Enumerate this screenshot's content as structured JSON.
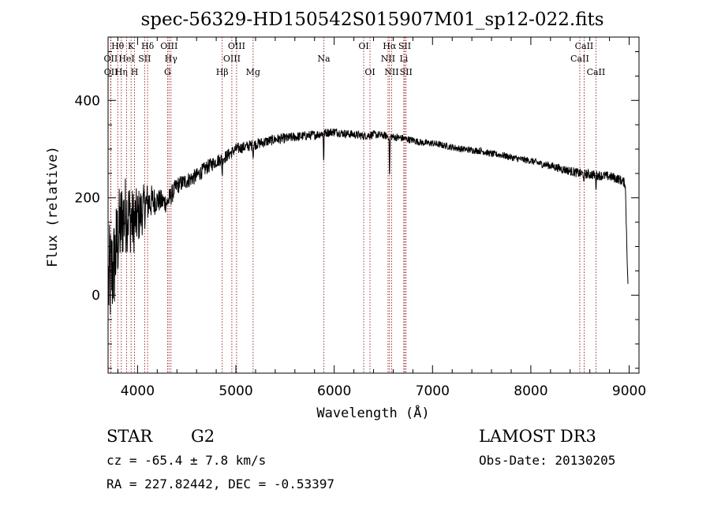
{
  "chart_data": {
    "type": "line",
    "title": "spec-56329-HD150542S015907M01_sp12-022.fits",
    "xlabel": "Wavelength (Å)",
    "ylabel": "Flux (relative)",
    "xlim": [
      3700,
      9100
    ],
    "ylim": [
      -160,
      530
    ],
    "xticks_major": [
      4000,
      5000,
      6000,
      7000,
      8000,
      9000
    ],
    "xtick_labels": [
      "4000",
      "5000",
      "6000",
      "7000",
      "8000",
      "9000"
    ],
    "yticks_major": [
      0,
      200,
      400
    ],
    "ytick_labels": [
      "0",
      "200",
      "400"
    ],
    "series": [
      {
        "name": "spectrum",
        "continuum": [
          [
            3700,
            20
          ],
          [
            3760,
            60
          ],
          [
            3800,
            120
          ],
          [
            3850,
            160
          ],
          [
            3900,
            170
          ],
          [
            3950,
            150
          ],
          [
            4000,
            160
          ],
          [
            4050,
            175
          ],
          [
            4100,
            190
          ],
          [
            4200,
            195
          ],
          [
            4300,
            190
          ],
          [
            4400,
            225
          ],
          [
            4500,
            235
          ],
          [
            4600,
            245
          ],
          [
            4700,
            262
          ],
          [
            4800,
            275
          ],
          [
            4900,
            285
          ],
          [
            5000,
            300
          ],
          [
            5100,
            305
          ],
          [
            5200,
            310
          ],
          [
            5300,
            315
          ],
          [
            5400,
            320
          ],
          [
            5500,
            322
          ],
          [
            5600,
            325
          ],
          [
            5700,
            327
          ],
          [
            5800,
            329
          ],
          [
            5900,
            333
          ],
          [
            6000,
            336
          ],
          [
            6100,
            332
          ],
          [
            6200,
            330
          ],
          [
            6300,
            327
          ],
          [
            6400,
            330
          ],
          [
            6500,
            328
          ],
          [
            6600,
            325
          ],
          [
            6700,
            322
          ],
          [
            6800,
            318
          ],
          [
            6900,
            313
          ],
          [
            7000,
            312
          ],
          [
            7100,
            308
          ],
          [
            7200,
            304
          ],
          [
            7300,
            300
          ],
          [
            7400,
            298
          ],
          [
            7500,
            296
          ],
          [
            7600,
            290
          ],
          [
            7700,
            288
          ],
          [
            7800,
            283
          ],
          [
            7900,
            279
          ],
          [
            8000,
            276
          ],
          [
            8100,
            270
          ],
          [
            8200,
            266
          ],
          [
            8300,
            260
          ],
          [
            8400,
            255
          ],
          [
            8500,
            250
          ],
          [
            8600,
            248
          ],
          [
            8700,
            246
          ],
          [
            8800,
            244
          ],
          [
            8900,
            238
          ],
          [
            8960,
            230
          ],
          [
            8990,
            0
          ]
        ],
        "noise": [
          [
            3700,
            120
          ],
          [
            3800,
            95
          ],
          [
            3900,
            80
          ],
          [
            4000,
            60
          ],
          [
            4200,
            25
          ],
          [
            4400,
            18
          ],
          [
            5000,
            12
          ],
          [
            6000,
            9
          ],
          [
            7000,
            7
          ],
          [
            8000,
            7
          ],
          [
            8500,
            10
          ],
          [
            8990,
            10
          ]
        ],
        "absorption_lines": [
          [
            4861,
            35
          ],
          [
            5175,
            25
          ],
          [
            5893,
            55
          ],
          [
            6563,
            85
          ],
          [
            8542,
            22
          ],
          [
            8662,
            25
          ]
        ]
      }
    ],
    "spectral_lines": [
      {
        "label": "OII",
        "x": 3727,
        "row": 2
      },
      {
        "label": "OII",
        "x": 3729,
        "row": 3
      },
      {
        "label": "Hθ",
        "x": 3798,
        "row": 1
      },
      {
        "label": "Hη",
        "x": 3835,
        "row": 3
      },
      {
        "label": "HeI",
        "x": 3889,
        "row": 2
      },
      {
        "label": "K",
        "x": 3934,
        "row": 1
      },
      {
        "label": "H",
        "x": 3969,
        "row": 3
      },
      {
        "label": "SII",
        "x": 4072,
        "row": 2
      },
      {
        "label": "Hδ",
        "x": 4102,
        "row": 1
      },
      {
        "label": "OIII",
        "x": 4320,
        "row": 1
      },
      {
        "label": "Hγ",
        "x": 4340,
        "row": 2
      },
      {
        "label": "G",
        "x": 4305,
        "row": 3
      },
      {
        "label": "Hβ",
        "x": 4861,
        "row": 3
      },
      {
        "label": "OIII",
        "x": 5007,
        "row": 1
      },
      {
        "label": "OIII",
        "x": 4959,
        "row": 2
      },
      {
        "label": "Mg",
        "x": 5175,
        "row": 3
      },
      {
        "label": "Na",
        "x": 5894,
        "row": 2
      },
      {
        "label": "OI",
        "x": 6300,
        "row": 1
      },
      {
        "label": "OI",
        "x": 6364,
        "row": 3
      },
      {
        "label": "Hα",
        "x": 6563,
        "row": 1
      },
      {
        "label": "NII",
        "x": 6548,
        "row": 2
      },
      {
        "label": "NII",
        "x": 6584,
        "row": 3
      },
      {
        "label": "SII",
        "x": 6717,
        "row": 1
      },
      {
        "label": "Li",
        "x": 6708,
        "row": 2
      },
      {
        "label": "SII",
        "x": 6731,
        "row": 3
      },
      {
        "label": "CaII",
        "x": 8542,
        "row": 1
      },
      {
        "label": "CaII",
        "x": 8498,
        "row": 2
      },
      {
        "label": "CaII",
        "x": 8662,
        "row": 3
      }
    ],
    "annotations": {
      "class": "STAR",
      "subclass": "G2",
      "survey": "LAMOST DR3",
      "cz": "cz = -65.4 ± 7.8 km/s",
      "obs_date": "Obs-Date: 20130205",
      "radec": "RA = 227.82442, DEC =  -0.53397"
    },
    "colors": {
      "line": "#000000",
      "marker": "#8b0000",
      "background": "#ffffff"
    }
  }
}
